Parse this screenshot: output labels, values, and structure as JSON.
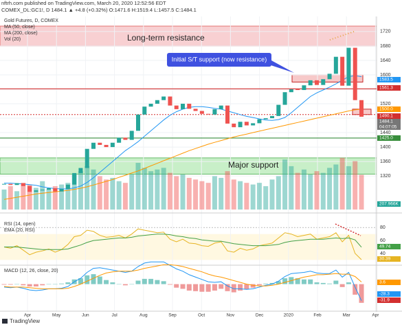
{
  "header": {
    "published": "nftrh.com published on TradingView.com, March 20, 2020 12:52:56 EDT",
    "quote": "COMEX_DL:GC1!, D  1484.1 ▲ +4.8 (+0.32%) O:1471.6 H:1519.4 L:1457.5 C:1484.1",
    "footer": "TradingView"
  },
  "chart_data": {
    "type": "candlestick",
    "title": "Gold Futures, D, COMEX",
    "legend": [
      "MA (50, close)",
      "MA (200, close)",
      "Vol (20)"
    ],
    "rsi_title": "RSI (14, open)",
    "rsi_ema_title": "EMA (20, RSI)",
    "macd_title": "MACD (12, 26, close, 20)",
    "annotations": [
      "Long-term resistance",
      "Initial S/T support (now resistance)",
      "Major support"
    ],
    "xticks": [
      "Apr",
      "May",
      "Jun",
      "Jul",
      "Aug",
      "Sep",
      "Oct",
      "Nov",
      "Dec",
      "2020",
      "Feb",
      "Mar",
      "Apr"
    ],
    "ylim": [
      1227,
      1735
    ],
    "yticks": [
      1320,
      1360,
      1400,
      1440,
      1480,
      1520,
      1560,
      1600,
      1640,
      1680,
      1720
    ],
    "levels": {
      "resistance": 1561.3,
      "support_dotted": 1490.1,
      "support": 1425.0
    },
    "zones": {
      "long_term": [
        1680,
        1735
      ],
      "major": [
        1325,
        1370
      ],
      "st": [
        1580,
        1600
      ],
      "recent": [
        1490,
        1505
      ]
    },
    "close": [
      1298,
      1295,
      1300,
      1292,
      1276,
      1280,
      1282,
      1286,
      1277,
      1284,
      1296,
      1328,
      1342,
      1395,
      1412,
      1406,
      1400,
      1412,
      1426,
      1420,
      1445,
      1490,
      1512,
      1520,
      1530,
      1540,
      1515,
      1505,
      1520,
      1506,
      1500,
      1492,
      1490,
      1505,
      1515,
      1465,
      1455,
      1470,
      1460,
      1466,
      1477,
      1480,
      1486,
      1517,
      1552,
      1560,
      1558,
      1571,
      1585,
      1572,
      1588,
      1603,
      1650,
      1570,
      1675,
      1530,
      1484
    ],
    "ma50": [
      1300,
      1300,
      1299,
      1298,
      1296,
      1294,
      1290,
      1287,
      1285,
      1284,
      1284,
      1287,
      1292,
      1302,
      1315,
      1330,
      1345,
      1360,
      1375,
      1390,
      1402,
      1415,
      1430,
      1445,
      1460,
      1475,
      1488,
      1498,
      1505,
      1510,
      1512,
      1512,
      1510,
      1507,
      1505,
      1500,
      1495,
      1490,
      1485,
      1482,
      1478,
      1475,
      1474,
      1476,
      1482,
      1495,
      1510,
      1525,
      1540,
      1550,
      1558,
      1566,
      1575,
      1585,
      1595,
      1598,
      1595
    ],
    "ma200": [
      1255,
      1258,
      1261,
      1264,
      1267,
      1270,
      1272,
      1274,
      1276,
      1278,
      1280,
      1283,
      1286,
      1290,
      1295,
      1300,
      1305,
      1310,
      1316,
      1322,
      1328,
      1334,
      1341,
      1348,
      1355,
      1362,
      1369,
      1376,
      1383,
      1390,
      1396,
      1402,
      1408,
      1413,
      1418,
      1423,
      1428,
      1432,
      1436,
      1440,
      1444,
      1448,
      1452,
      1456,
      1460,
      1464,
      1468,
      1472,
      1476,
      1480,
      1484,
      1488,
      1492,
      1496,
      1500,
      1503,
      1505
    ],
    "ma_colors": [
      "#2196f3",
      "#ff9800"
    ],
    "vlim": [
      0,
      1100
    ],
    "volume": [
      120,
      140,
      110,
      160,
      150,
      130,
      170,
      120,
      140,
      150,
      160,
      210,
      230,
      260,
      240,
      200,
      180,
      190,
      170,
      160,
      210,
      280,
      250,
      230,
      240,
      250,
      220,
      200,
      210,
      190,
      180,
      170,
      160,
      200,
      190,
      230,
      180,
      170,
      160,
      150,
      160,
      140,
      180,
      200,
      300,
      260,
      220,
      240,
      210,
      230,
      220,
      250,
      270,
      310,
      260,
      290,
      208
    ],
    "up_color": "#26a69a",
    "down_color": "#ef5350",
    "rsi_ylim": [
      24,
      92
    ],
    "rsi_yticks": [
      40,
      60,
      80
    ],
    "rsi": [
      50,
      48,
      52,
      45,
      38,
      42,
      44,
      47,
      42,
      46,
      54,
      66,
      68,
      76,
      74,
      68,
      65,
      66,
      68,
      64,
      70,
      78,
      76,
      74,
      72,
      73,
      62,
      58,
      62,
      56,
      55,
      52,
      51,
      56,
      58,
      44,
      42,
      48,
      45,
      47,
      52,
      54,
      56,
      64,
      72,
      70,
      66,
      68,
      70,
      62,
      64,
      66,
      72,
      58,
      68,
      40,
      30.39
    ],
    "rsi_ema": [
      50,
      50,
      50,
      49,
      48,
      47,
      46,
      46,
      46,
      46,
      47,
      50,
      53,
      57,
      60,
      61,
      62,
      63,
      64,
      64,
      65,
      67,
      68,
      69,
      70,
      70,
      69,
      67,
      66,
      64,
      63,
      61,
      60,
      59,
      59,
      57,
      55,
      54,
      53,
      52,
      52,
      52,
      53,
      54,
      57,
      59,
      60,
      61,
      62,
      62,
      62,
      63,
      64,
      63,
      64,
      61,
      49.74
    ],
    "macd_ylim": [
      -45,
      30
    ],
    "macd": [
      -5,
      -6,
      -5,
      -7,
      -10,
      -11,
      -10,
      -8,
      -8,
      -7,
      -4,
      4,
      10,
      20,
      27,
      28,
      26,
      24,
      22,
      20,
      22,
      30,
      36,
      38,
      38,
      38,
      32,
      26,
      22,
      16,
      12,
      8,
      4,
      3,
      4,
      -3,
      -8,
      -8,
      -9,
      -8,
      -5,
      -2,
      0,
      5,
      13,
      18,
      19,
      20,
      22,
      19,
      18,
      18,
      24,
      12,
      20,
      -5,
      -28.3
    ],
    "signal": [
      -4,
      -5,
      -5,
      -5,
      -6,
      -7,
      -8,
      -8,
      -8,
      -8,
      -7,
      -4,
      0,
      5,
      10,
      15,
      19,
      21,
      22,
      22,
      22,
      24,
      27,
      29,
      31,
      33,
      33,
      32,
      30,
      27,
      24,
      21,
      17,
      14,
      12,
      9,
      6,
      3,
      0,
      -2,
      -3,
      -3,
      -2,
      0,
      3,
      6,
      9,
      12,
      14,
      16,
      16,
      17,
      18,
      17,
      17,
      13,
      3.6
    ],
    "badges": [
      "1583.5",
      "1561.3",
      "1500.0",
      "1490.1",
      "1484.1",
      "04:07:05",
      "1425.0",
      "207.966K",
      "49.74",
      "30.39",
      "3.6",
      "-28.3",
      "-31.9"
    ]
  }
}
